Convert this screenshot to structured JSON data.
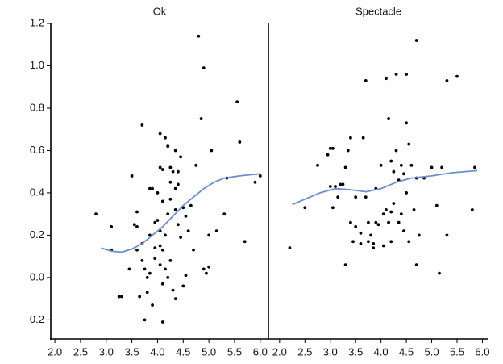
{
  "chart_data": [
    {
      "type": "scatter",
      "title": "Ok",
      "series": [
        {
          "style": "points",
          "color": "#000000",
          "x": [
            2.8,
            3.1,
            3.1,
            3.25,
            3.3,
            3.45,
            3.5,
            3.55,
            3.6,
            3.6,
            3.65,
            3.7,
            3.7,
            3.7,
            3.75,
            3.75,
            3.8,
            3.8,
            3.85,
            3.85,
            3.85,
            3.9,
            3.9,
            3.95,
            3.95,
            4.0,
            4.0,
            4.05,
            4.05,
            4.05,
            4.05,
            4.05,
            4.1,
            4.1,
            4.1,
            4.1,
            4.1,
            4.15,
            4.15,
            4.15,
            4.2,
            4.2,
            4.25,
            4.25,
            4.25,
            4.25,
            4.3,
            4.3,
            4.35,
            4.35,
            4.35,
            4.35,
            4.4,
            4.4,
            4.4,
            4.45,
            4.45,
            4.5,
            4.5,
            4.55,
            4.55,
            4.6,
            4.65,
            4.7,
            4.75,
            4.8,
            4.85,
            4.9,
            4.9,
            4.95,
            5.0,
            5.0,
            5.05,
            5.15,
            5.3,
            5.35,
            5.55,
            5.6,
            5.7,
            5.9,
            6.0,
            3.95,
            4.2,
            3.6
          ],
          "values": [
            0.3,
            0.24,
            0.13,
            -0.09,
            -0.09,
            0.04,
            0.48,
            0.25,
            0.31,
            0.13,
            -0.09,
            0.72,
            0.16,
            0.08,
            0.04,
            -0.2,
            0.0,
            -0.07,
            0.42,
            0.2,
            0.02,
            0.42,
            -0.13,
            0.09,
            0.26,
            0.4,
            0.27,
            0.68,
            0.52,
            0.22,
            0.15,
            0.06,
            0.51,
            0.36,
            -0.21,
            0.13,
            -0.03,
            0.66,
            0.2,
            0.04,
            0.62,
            0.3,
            0.52,
            0.45,
            0.37,
            0.08,
            0.5,
            -0.06,
            0.6,
            0.42,
            0.32,
            -0.1,
            0.5,
            0.44,
            0.25,
            0.57,
            0.19,
            0.33,
            -0.04,
            0.29,
            0.01,
            0.22,
            0.34,
            0.13,
            0.53,
            1.14,
            0.75,
            0.99,
            0.04,
            0.02,
            0.2,
            0.05,
            0.6,
            0.22,
            0.3,
            0.47,
            0.83,
            0.64,
            0.17,
            0.45,
            0.48,
            0.14,
            0.0,
            0.24
          ]
        },
        {
          "style": "line",
          "color": "#6b8fcc",
          "x": [
            2.9,
            3.1,
            3.3,
            3.5,
            3.7,
            3.9,
            4.1,
            4.3,
            4.5,
            4.7,
            4.9,
            5.1,
            5.3,
            5.6,
            6.0
          ],
          "values": [
            0.14,
            0.125,
            0.12,
            0.135,
            0.16,
            0.2,
            0.24,
            0.29,
            0.34,
            0.38,
            0.42,
            0.45,
            0.47,
            0.48,
            0.49
          ]
        }
      ],
      "xlim": [
        1.92,
        6.16
      ],
      "xticks": [
        {
          "value": 2,
          "label": "2.0"
        },
        2.5,
        {
          "value": 3,
          "label": "3.0"
        },
        3.5,
        {
          "value": 4,
          "label": "4.0"
        },
        4.5,
        {
          "value": 5,
          "label": "5.0"
        },
        5.5,
        {
          "value": 6,
          "label": "6.0"
        }
      ],
      "ylim": [
        -0.29,
        1.2
      ],
      "yticks": [
        -0.2,
        {
          "value": 0,
          "label": "0.0"
        },
        0.2,
        0.4,
        0.6,
        0.8,
        {
          "value": 1,
          "label": "1.0"
        },
        1.2
      ]
    },
    {
      "type": "scatter",
      "title": "Spectacle",
      "series": [
        {
          "style": "points",
          "color": "#000000",
          "x": [
            2.2,
            2.5,
            2.75,
            2.95,
            3.0,
            3.05,
            3.05,
            3.1,
            3.15,
            3.2,
            3.25,
            3.3,
            3.3,
            3.35,
            3.4,
            3.4,
            3.45,
            3.5,
            3.5,
            3.6,
            3.6,
            3.65,
            3.7,
            3.7,
            3.75,
            3.75,
            3.8,
            3.85,
            3.85,
            3.9,
            3.95,
            4.0,
            4.05,
            4.1,
            4.1,
            4.15,
            4.15,
            4.2,
            4.2,
            4.25,
            4.25,
            4.3,
            4.3,
            4.35,
            4.35,
            4.4,
            4.4,
            4.45,
            4.45,
            4.5,
            4.5,
            4.5,
            4.55,
            4.55,
            4.6,
            4.65,
            4.7,
            4.7,
            4.7,
            4.75,
            4.85,
            5.0,
            5.1,
            5.15,
            5.2,
            5.3,
            5.3,
            5.5,
            5.8,
            5.85,
            4.05,
            3.9,
            4.2,
            3.0
          ],
          "values": [
            0.14,
            0.33,
            0.53,
            0.58,
            0.61,
            0.61,
            0.33,
            0.43,
            0.38,
            0.44,
            0.44,
            0.52,
            0.06,
            0.6,
            0.66,
            0.26,
            0.17,
            0.38,
            0.24,
            0.21,
            0.16,
            0.66,
            0.93,
            0.38,
            0.26,
            0.17,
            0.2,
            0.14,
            0.16,
            0.26,
            0.25,
            0.53,
            0.3,
            0.32,
            0.94,
            0.75,
            0.26,
            0.55,
            0.17,
            0.5,
            0.35,
            0.96,
            0.6,
            0.46,
            0.26,
            0.53,
            0.3,
            0.49,
            0.22,
            0.96,
            0.73,
            0.4,
            0.63,
            0.17,
            0.53,
            0.32,
            1.12,
            0.47,
            0.06,
            0.2,
            0.47,
            0.52,
            0.34,
            0.02,
            0.52,
            0.93,
            0.2,
            0.95,
            0.32,
            0.52,
            0.15,
            0.42,
            0.31,
            0.43
          ]
        },
        {
          "style": "line",
          "color": "#6b8fcc",
          "x": [
            2.25,
            2.5,
            2.8,
            3.1,
            3.4,
            3.7,
            4.0,
            4.3,
            4.6,
            5.0,
            5.4,
            5.9
          ],
          "values": [
            0.345,
            0.37,
            0.4,
            0.42,
            0.415,
            0.405,
            0.42,
            0.45,
            0.47,
            0.48,
            0.495,
            0.505
          ]
        }
      ],
      "xlim": [
        1.78,
        6.12
      ],
      "xticks": [
        {
          "value": 2,
          "label": "2.0"
        },
        2.5,
        {
          "value": 3,
          "label": "3.0"
        },
        3.5,
        {
          "value": 4,
          "label": "4.0"
        },
        4.5,
        {
          "value": 5,
          "label": "5.0"
        },
        5.5,
        {
          "value": 6,
          "label": "6.0"
        }
      ],
      "ylim": [
        -0.29,
        1.2
      ]
    }
  ]
}
